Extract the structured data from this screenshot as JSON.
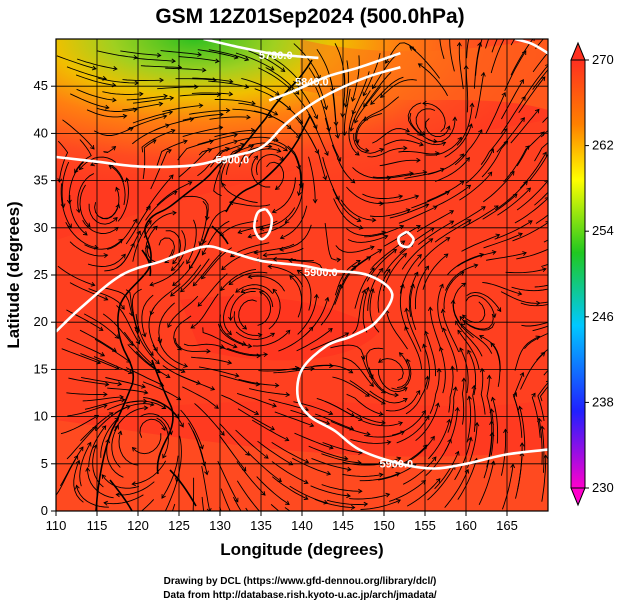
{
  "title": "GSM 12Z01Sep2024 (500.0hPa)",
  "xlabel": "Longitude (degrees)",
  "ylabel": "Latitude  (degrees)",
  "credits": [
    "Drawing by DCL (https://www.gfd-dennou.org/library/dcl/)",
    "Data from http://database.rish.kyoto-u.ac.jp/arch/jmadata/"
  ],
  "chart_data": {
    "type": "heatmap",
    "title": "GSM 12Z01Sep2024 (500.0hPa)",
    "xlabel": "Longitude (degrees)",
    "ylabel": "Latitude  (degrees)",
    "xlim": [
      110,
      170
    ],
    "ylim": [
      0,
      50
    ],
    "x_ticks": [
      110,
      115,
      120,
      125,
      130,
      135,
      140,
      145,
      150,
      155,
      160,
      165
    ],
    "y_ticks": [
      0,
      5,
      10,
      15,
      20,
      25,
      30,
      35,
      40,
      45
    ],
    "grid": true,
    "colorbar": {
      "ticks": [
        230,
        238,
        246,
        254,
        262,
        270
      ],
      "range": [
        230,
        270
      ],
      "colors": [
        "#ff00cc",
        "#2020ff",
        "#00c8ff",
        "#20c820",
        "#ffff00",
        "#ff8000",
        "#ff3020"
      ]
    },
    "contours": [
      {
        "label": "5900.0",
        "points": [
          [
            110,
            19
          ],
          [
            113,
            21.5
          ],
          [
            118,
            25
          ],
          [
            123,
            26.5
          ],
          [
            128,
            28
          ],
          [
            131,
            27.5
          ],
          [
            135,
            26.5
          ],
          [
            140,
            26
          ],
          [
            143,
            25.5
          ],
          [
            148,
            25
          ],
          [
            151,
            23
          ],
          [
            149,
            20
          ],
          [
            146,
            18.5
          ],
          [
            143,
            17.5
          ],
          [
            140,
            15
          ],
          [
            139.5,
            12
          ],
          [
            141,
            10
          ],
          [
            144,
            8.5
          ],
          [
            147,
            6.5
          ],
          [
            152,
            5
          ],
          [
            156,
            4.5
          ],
          [
            160,
            5
          ],
          [
            165,
            6
          ],
          [
            170,
            6.5
          ]
        ]
      },
      {
        "label": "5900.0",
        "points": [
          [
            110,
            37.5
          ],
          [
            115,
            37
          ],
          [
            120,
            36.5
          ],
          [
            125,
            36.5
          ],
          [
            128,
            36.8
          ],
          [
            131,
            37.5
          ],
          [
            135,
            38.5
          ],
          [
            138,
            41
          ],
          [
            141,
            43
          ],
          [
            144,
            44.5
          ],
          [
            148,
            46
          ],
          [
            152,
            47
          ]
        ]
      },
      {
        "label": "5840.0",
        "points": [
          [
            136,
            43.5
          ],
          [
            139,
            44.5
          ],
          [
            143,
            46
          ],
          [
            147,
            47
          ],
          [
            152,
            48.5
          ]
        ]
      },
      {
        "label": "5780.0",
        "points": [
          [
            128,
            50
          ],
          [
            132,
            49.2
          ],
          [
            136,
            48.5
          ],
          [
            139,
            48.2
          ],
          [
            142,
            48
          ]
        ]
      },
      {
        "label": "",
        "points": [
          [
            135.6,
            32
          ],
          [
            136.3,
            31
          ],
          [
            136.0,
            29.5
          ],
          [
            135.0,
            28.8
          ],
          [
            134.2,
            30
          ],
          [
            134.6,
            31.6
          ],
          [
            135.6,
            32
          ]
        ]
      },
      {
        "label": "",
        "points": [
          [
            152.8,
            29.6
          ],
          [
            153.6,
            28.8
          ],
          [
            153.0,
            28.0
          ],
          [
            152.0,
            28.2
          ],
          [
            151.8,
            29.0
          ],
          [
            152.8,
            29.6
          ]
        ]
      },
      {
        "label": "",
        "points": [
          [
            170,
            48.5
          ],
          [
            168,
            49.5
          ],
          [
            166,
            50
          ]
        ]
      }
    ],
    "contour_labels": [
      "5900.0",
      "5900.0",
      "5900.0",
      "5840.0",
      "5780.0"
    ]
  }
}
